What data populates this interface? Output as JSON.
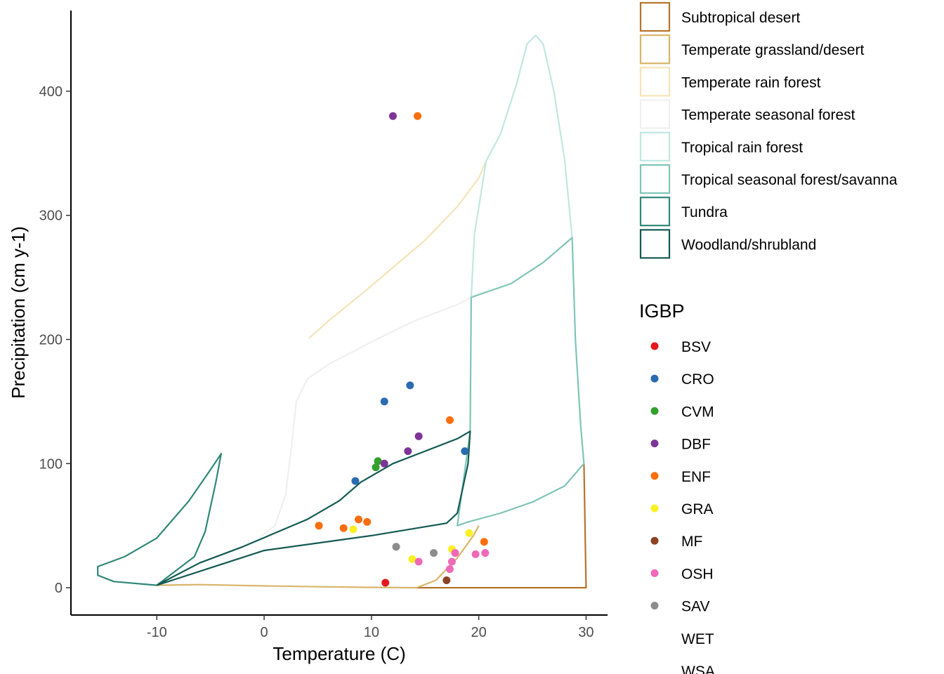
{
  "chart_data": {
    "type": "scatter",
    "xlabel": "Temperature (C)",
    "ylabel": "Precipitation (cm y-1)",
    "xlim": [
      -18,
      32
    ],
    "ylim": [
      -22,
      465
    ],
    "x_ticks": [
      -10,
      0,
      10,
      20,
      30
    ],
    "y_ticks": [
      0,
      100,
      200,
      300,
      400
    ],
    "x_tick_labels": [
      "-10",
      "0",
      "10",
      "20",
      "30"
    ],
    "y_tick_labels": [
      "0",
      "100",
      "200",
      "300",
      "400"
    ],
    "grid": false,
    "biomes": [
      {
        "name": "Subtropical desert",
        "color": "#B5732C",
        "points": [
          [
            14.2,
            0
          ],
          [
            30,
            0
          ],
          [
            29.8,
            100
          ]
        ]
      },
      {
        "name": "Temperate grassland/desert",
        "color": "#D9B56A",
        "points": [
          [
            -10,
            2
          ],
          [
            -6,
            2.5
          ],
          [
            0,
            1.5
          ],
          [
            5,
            0.8
          ],
          [
            10,
            0.3
          ],
          [
            14.2,
            0
          ],
          [
            16,
            6
          ],
          [
            18,
            24
          ],
          [
            19.5,
            42
          ],
          [
            20,
            50
          ]
        ]
      },
      {
        "name": "Temperate rain forest",
        "color": "#F5E4B8",
        "points": [
          [
            4.2,
            201
          ],
          [
            6,
            215
          ],
          [
            9,
            236
          ],
          [
            12,
            258
          ],
          [
            15,
            280
          ],
          [
            18,
            307
          ],
          [
            20,
            330
          ],
          [
            20.7,
            344
          ]
        ]
      },
      {
        "name": "Temperate seasonal forest",
        "color": "#EFEFEF",
        "points": [
          [
            -0.5,
            40
          ],
          [
            1,
            50
          ],
          [
            2,
            75
          ],
          [
            2.5,
            110
          ],
          [
            3,
            150
          ],
          [
            4,
            168
          ],
          [
            6,
            180
          ],
          [
            10,
            198
          ],
          [
            14,
            215
          ],
          [
            18,
            228
          ],
          [
            19.3,
            234
          ]
        ]
      },
      {
        "name": "Tropical rain forest",
        "color": "#C1E7E1",
        "points": [
          [
            19.3,
            234
          ],
          [
            19.6,
            285
          ],
          [
            20.7,
            344
          ],
          [
            22,
            365
          ],
          [
            23.5,
            405
          ],
          [
            24.5,
            438
          ],
          [
            25.3,
            445
          ],
          [
            26,
            438
          ],
          [
            27,
            400
          ],
          [
            28,
            345
          ],
          [
            28.5,
            300
          ],
          [
            28.7,
            282
          ]
        ]
      },
      {
        "name": "Tropical seasonal forest/savanna",
        "color": "#7FC5B6",
        "points": [
          [
            19.3,
            234
          ],
          [
            23,
            245
          ],
          [
            26,
            262
          ],
          [
            28.7,
            282
          ],
          [
            29,
            200
          ],
          [
            29.5,
            130
          ],
          [
            29.8,
            100
          ],
          [
            28,
            82
          ],
          [
            25,
            69
          ],
          [
            22,
            60
          ],
          [
            19,
            53
          ],
          [
            18,
            50
          ],
          [
            19.2,
            126
          ],
          [
            19.3,
            234
          ]
        ]
      },
      {
        "name": "Tundra",
        "color": "#2F8777",
        "points": [
          [
            -10,
            2
          ],
          [
            -14,
            5
          ],
          [
            -15.5,
            10
          ],
          [
            -15.5,
            17
          ],
          [
            -13,
            25
          ],
          [
            -10,
            40
          ],
          [
            -7,
            70
          ],
          [
            -5,
            95
          ],
          [
            -4,
            108
          ],
          [
            -4.5,
            85
          ],
          [
            -5.5,
            45
          ],
          [
            -6.5,
            25
          ],
          [
            -10,
            2
          ]
        ]
      },
      {
        "name": "Woodland/shrubland",
        "color": "#135952",
        "points": [
          [
            -10,
            2
          ],
          [
            -6,
            20
          ],
          [
            -2,
            33
          ],
          [
            1,
            44
          ],
          [
            4,
            55
          ],
          [
            7,
            70
          ],
          [
            9,
            85
          ],
          [
            12,
            100
          ],
          [
            15,
            110
          ],
          [
            18,
            120
          ],
          [
            19.2,
            126
          ],
          [
            19,
            100
          ],
          [
            18,
            60
          ],
          [
            17,
            52
          ],
          [
            10,
            42
          ],
          [
            0,
            30
          ],
          [
            -5,
            16
          ],
          [
            -10,
            2
          ]
        ]
      }
    ],
    "groups": [
      {
        "name": "BSV",
        "color": "#E41A1C",
        "points": [
          [
            11.3,
            4
          ]
        ]
      },
      {
        "name": "CRO",
        "color": "#2B6CB0",
        "points": [
          [
            13.6,
            163
          ],
          [
            11.2,
            150
          ],
          [
            18.7,
            110
          ],
          [
            8.5,
            86
          ]
        ]
      },
      {
        "name": "CVM",
        "color": "#33A02C",
        "points": [
          [
            10.6,
            102
          ],
          [
            10.4,
            97
          ]
        ]
      },
      {
        "name": "DBF",
        "color": "#7E3596",
        "points": [
          [
            12,
            380
          ],
          [
            14.4,
            122
          ],
          [
            13.4,
            110
          ],
          [
            11.2,
            100
          ]
        ]
      },
      {
        "name": "ENF",
        "color": "#F86E0E",
        "points": [
          [
            14.3,
            380
          ],
          [
            17.3,
            135
          ],
          [
            8.8,
            55
          ],
          [
            9.6,
            53
          ],
          [
            5.1,
            50
          ],
          [
            7.4,
            48
          ],
          [
            20.5,
            37
          ]
        ]
      },
      {
        "name": "GRA",
        "color": "#FAF024",
        "points": [
          [
            8.3,
            47
          ],
          [
            19.1,
            44
          ],
          [
            17.5,
            31
          ],
          [
            13.8,
            23
          ]
        ]
      },
      {
        "name": "MF",
        "color": "#8C4323",
        "points": [
          [
            17,
            6
          ]
        ]
      },
      {
        "name": "OSH",
        "color": "#F068B8",
        "points": [
          [
            14.4,
            21
          ],
          [
            17.8,
            28
          ],
          [
            17.5,
            21
          ],
          [
            17.3,
            15
          ],
          [
            19.7,
            27
          ],
          [
            20.6,
            28
          ]
        ]
      },
      {
        "name": "SAV",
        "color": "#8C8C8C",
        "points": [
          [
            12.3,
            33
          ],
          [
            15.8,
            28
          ]
        ]
      },
      {
        "name": "WET",
        "color": "#FFFFFF",
        "points": []
      },
      {
        "name": "WSA",
        "color": "#FFFFFF",
        "points": []
      }
    ],
    "legend_title": "IGBP",
    "legend_position": "right"
  }
}
